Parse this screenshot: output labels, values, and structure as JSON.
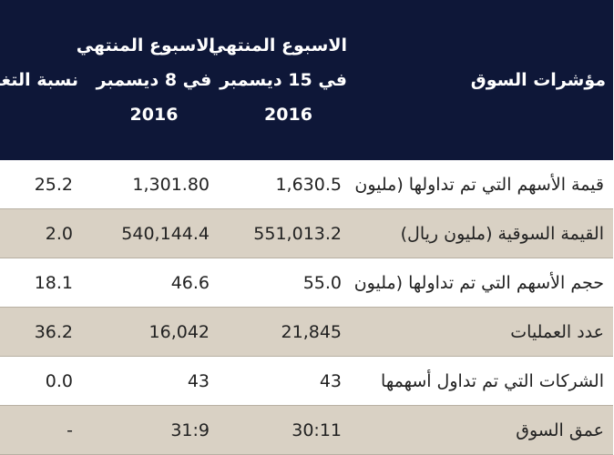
{
  "table": {
    "header": [
      [
        "مؤشرات السوق"
      ],
      [
        "الاسبوع المنتهي",
        "في 15 ديسمبر",
        "2016"
      ],
      [
        "الاسبوع المنتهي",
        "في 8 ديسمبر",
        "2016"
      ],
      [
        "نسبة التغيير"
      ]
    ],
    "rows": [
      [
        "قيمة الأسهم التي تم تداولها (مليون ريال)",
        "1,630.5",
        "1,301.80",
        "25.2"
      ],
      [
        "القيمة السوقية (مليون ريال)",
        "551,013.2",
        "540,144.4",
        "2.0"
      ],
      [
        "حجم الأسهم التي تم تداولها (مليون)",
        "55.0",
        "46.6",
        "18.1"
      ],
      [
        "عدد العمليات",
        "21,845",
        "16,042",
        "36.2"
      ],
      [
        "الشركات التي تم تداول أسهمها",
        "43",
        "43",
        "0.0"
      ],
      [
        "عمق السوق",
        "30:11",
        "31:9",
        "-"
      ]
    ]
  }
}
